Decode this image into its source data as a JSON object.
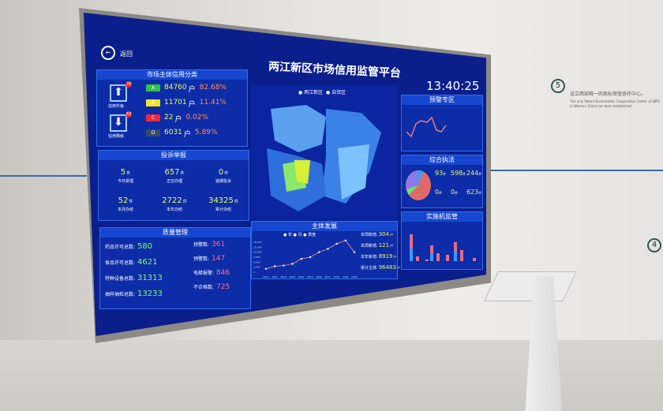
{
  "header": {
    "back_label": "返回",
    "title": "两江新区市场信用监管平台",
    "time": "13:40:25"
  },
  "credit": {
    "title": "市场主体信用分类",
    "upgrade_label": "信用升级",
    "upgrade_count": "78",
    "downgrade_label": "信用降级",
    "downgrade_count": "63",
    "rows": [
      {
        "grade": "A",
        "count": "84760",
        "unit": "户",
        "pct": "82.68%",
        "color": "#2fc24a"
      },
      {
        "grade": "B",
        "count": "11701",
        "unit": "户",
        "pct": "11.41%",
        "color": "#f2e22a"
      },
      {
        "grade": "C",
        "count": "22",
        "unit": "户",
        "pct": "0.02%",
        "color": "#f0283c"
      },
      {
        "grade": "D",
        "count": "6031",
        "unit": "户",
        "pct": "5.89%",
        "color": "#3a4a6a"
      }
    ]
  },
  "complaints": {
    "title": "投诉举报",
    "cells": [
      {
        "value": "5",
        "unit": "件",
        "label": "今日受理"
      },
      {
        "value": "657",
        "unit": "件",
        "label": "正在办理"
      },
      {
        "value": "0",
        "unit": "件",
        "label": "逾期投诉"
      },
      {
        "value": "52",
        "unit": "件",
        "label": "本月办结"
      },
      {
        "value": "2722",
        "unit": "件",
        "label": "本年办结"
      },
      {
        "value": "34325",
        "unit": "件",
        "label": "累计办结"
      }
    ]
  },
  "quality": {
    "title": "质量管理",
    "left": [
      {
        "label": "药品许可总数:",
        "value": "580"
      },
      {
        "label": "食品许可总数:",
        "value": "4621"
      },
      {
        "label": "特种设备总数:",
        "value": "31313"
      },
      {
        "label": "抽样抽检总数:",
        "value": "13233"
      }
    ],
    "right": [
      {
        "label": "预警数:",
        "value": "361"
      },
      {
        "label": "预警数:",
        "value": "147"
      },
      {
        "label": "电梯报警:",
        "value": "846"
      },
      {
        "label": "不合格数:",
        "value": "725"
      }
    ]
  },
  "map": {
    "legend": [
      "两江新区",
      "自贸区"
    ]
  },
  "development": {
    "title": "主体发展",
    "legend": [
      "年",
      "月",
      "季度"
    ],
    "stats": [
      {
        "label": "本周新增:",
        "value": "304",
        "unit": "户"
      },
      {
        "label": "本周新增:",
        "value": "121",
        "unit": "户"
      },
      {
        "label": "本年新增:",
        "value": "8919",
        "unit": "户"
      },
      {
        "label": "累计主体:",
        "value": "96483",
        "unit": "户"
      }
    ]
  },
  "chart_data": {
    "type": "line",
    "x": [
      "2010",
      "2011",
      "2012",
      "2013",
      "2014",
      "2015",
      "2016",
      "2017",
      "2018",
      "2019",
      "2020"
    ],
    "values": [
      2000,
      3500,
      4000,
      5000,
      8000,
      9000,
      12000,
      14000,
      17000,
      19000,
      12000
    ],
    "ylim": [
      0,
      18000
    ],
    "yticks": [
      "0",
      "3,000",
      "6,000",
      "9,000",
      "12,000",
      "15,000",
      "18,000"
    ]
  },
  "warning": {
    "title": "预警专区"
  },
  "enforcement": {
    "title": "综合执法",
    "stats": [
      {
        "value": "93",
        "unit": "件"
      },
      {
        "value": "598",
        "unit": "件"
      },
      {
        "value": "244",
        "unit": "件"
      },
      {
        "value": "0",
        "unit": "件"
      },
      {
        "value": "0",
        "unit": "件"
      },
      {
        "value": "623",
        "unit": "件"
      }
    ]
  },
  "supervision": {
    "title": "实施机监管"
  },
  "wall": {
    "step": "5",
    "step_next": "4",
    "text": "设立西部唯一的商标审查协作中心。",
    "text_en": "The only Patent Examination Cooperation Center of SIPO in Western China has been established."
  }
}
